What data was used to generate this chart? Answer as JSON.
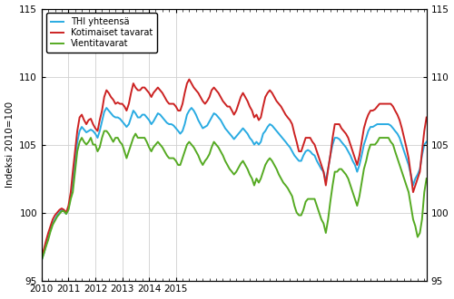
{
  "ylabel": "Indeksi 2010=100",
  "ylim": [
    95,
    115
  ],
  "yticks": [
    95,
    100,
    105,
    110,
    115
  ],
  "legend": [
    "THI yhteensä",
    "Kotimaiset tavarat",
    "Vientitavarat"
  ],
  "colors": [
    "#29abe2",
    "#cc2222",
    "#55aa22"
  ],
  "linewidth": 1.4,
  "thi_total": [
    96.5,
    97.0,
    97.6,
    98.2,
    98.7,
    99.2,
    99.5,
    99.8,
    100.0,
    100.2,
    100.1,
    99.9,
    100.3,
    101.2,
    102.3,
    103.8,
    105.2,
    106.0,
    106.3,
    106.1,
    105.9,
    106.0,
    106.1,
    106.0,
    105.8,
    105.5,
    106.0,
    106.7,
    107.4,
    107.7,
    107.5,
    107.3,
    107.1,
    107.0,
    107.0,
    106.9,
    106.7,
    106.5,
    106.3,
    106.5,
    107.0,
    107.5,
    107.3,
    107.0,
    107.0,
    107.2,
    107.2,
    107.0,
    106.8,
    106.5,
    106.7,
    107.0,
    107.3,
    107.2,
    107.0,
    106.8,
    106.6,
    106.5,
    106.5,
    106.4,
    106.2,
    106.0,
    105.8,
    106.0,
    106.5,
    107.2,
    107.5,
    107.7,
    107.5,
    107.2,
    106.8,
    106.5,
    106.2,
    106.3,
    106.4,
    106.7,
    107.0,
    107.3,
    107.2,
    107.0,
    106.8,
    106.5,
    106.2,
    106.0,
    105.8,
    105.6,
    105.4,
    105.6,
    105.8,
    106.0,
    106.2,
    106.0,
    105.8,
    105.5,
    105.3,
    105.0,
    105.2,
    105.0,
    105.2,
    105.8,
    106.0,
    106.3,
    106.5,
    106.4,
    106.2,
    106.0,
    105.8,
    105.6,
    105.4,
    105.2,
    105.0,
    104.8,
    104.5,
    104.2,
    104.0,
    103.8,
    103.8,
    104.2,
    104.5,
    104.6,
    104.5,
    104.3,
    104.2,
    103.8,
    103.5,
    103.2,
    103.0,
    102.3,
    103.2,
    104.2,
    105.0,
    105.5,
    105.5,
    105.4,
    105.2,
    105.0,
    104.8,
    104.5,
    104.2,
    103.8,
    103.5,
    103.0,
    103.5,
    104.2,
    105.0,
    105.5,
    106.0,
    106.3,
    106.3,
    106.4,
    106.5,
    106.5,
    106.5,
    106.5,
    106.5,
    106.5,
    106.4,
    106.2,
    106.0,
    105.8,
    105.5,
    105.0,
    104.5,
    104.0,
    103.5,
    102.8,
    102.0,
    102.5,
    102.8,
    103.2,
    104.2,
    105.0,
    105.2
  ],
  "kotimaiset": [
    96.8,
    97.3,
    97.9,
    98.5,
    99.0,
    99.5,
    99.8,
    100.0,
    100.2,
    100.3,
    100.2,
    100.0,
    100.5,
    101.5,
    103.0,
    104.5,
    106.0,
    107.0,
    107.2,
    106.8,
    106.5,
    106.8,
    106.9,
    106.5,
    106.2,
    106.0,
    106.8,
    107.5,
    108.5,
    109.0,
    108.8,
    108.5,
    108.3,
    108.0,
    108.1,
    108.0,
    108.0,
    107.8,
    107.5,
    108.0,
    108.8,
    109.5,
    109.2,
    109.0,
    109.0,
    109.2,
    109.2,
    109.0,
    108.8,
    108.5,
    108.8,
    109.0,
    109.2,
    109.0,
    108.8,
    108.5,
    108.2,
    108.0,
    108.0,
    108.0,
    107.8,
    107.5,
    107.5,
    108.0,
    108.8,
    109.5,
    109.8,
    109.5,
    109.2,
    109.0,
    108.8,
    108.5,
    108.2,
    108.0,
    108.2,
    108.5,
    109.0,
    109.2,
    109.0,
    108.8,
    108.5,
    108.2,
    108.0,
    107.8,
    107.8,
    107.5,
    107.2,
    107.5,
    108.0,
    108.5,
    108.8,
    108.5,
    108.2,
    107.8,
    107.5,
    107.0,
    107.2,
    106.8,
    107.0,
    107.8,
    108.5,
    108.8,
    109.0,
    108.8,
    108.5,
    108.2,
    108.0,
    107.8,
    107.5,
    107.2,
    107.0,
    106.8,
    106.5,
    105.8,
    105.2,
    104.5,
    104.5,
    105.0,
    105.5,
    105.5,
    105.5,
    105.2,
    105.0,
    104.5,
    104.0,
    103.5,
    103.0,
    102.0,
    103.2,
    104.2,
    105.5,
    106.5,
    106.5,
    106.5,
    106.2,
    106.0,
    105.8,
    105.5,
    105.0,
    104.5,
    104.0,
    103.5,
    104.2,
    105.2,
    106.2,
    106.8,
    107.2,
    107.5,
    107.5,
    107.6,
    107.8,
    108.0,
    108.0,
    108.0,
    108.0,
    108.0,
    108.0,
    107.8,
    107.5,
    107.2,
    106.8,
    106.2,
    105.5,
    104.8,
    104.0,
    102.8,
    101.5,
    102.0,
    102.5,
    103.0,
    104.5,
    106.0,
    107.0
  ],
  "vienti": [
    96.5,
    97.0,
    97.5,
    98.0,
    98.6,
    99.1,
    99.4,
    99.7,
    99.9,
    100.1,
    100.1,
    99.9,
    100.2,
    101.0,
    101.5,
    103.0,
    104.5,
    105.2,
    105.5,
    105.2,
    105.0,
    105.2,
    105.5,
    105.0,
    105.0,
    104.5,
    104.8,
    105.5,
    106.0,
    106.0,
    105.8,
    105.5,
    105.2,
    105.5,
    105.5,
    105.2,
    105.0,
    104.5,
    104.0,
    104.5,
    105.0,
    105.5,
    105.8,
    105.5,
    105.5,
    105.5,
    105.5,
    105.2,
    104.8,
    104.5,
    104.8,
    105.0,
    105.2,
    105.0,
    104.8,
    104.5,
    104.2,
    104.0,
    104.0,
    104.0,
    103.8,
    103.5,
    103.5,
    104.0,
    104.5,
    105.0,
    105.2,
    105.0,
    104.8,
    104.5,
    104.2,
    103.8,
    103.5,
    103.8,
    104.0,
    104.3,
    104.8,
    105.2,
    105.0,
    104.8,
    104.5,
    104.2,
    103.8,
    103.5,
    103.2,
    103.0,
    102.8,
    103.0,
    103.3,
    103.6,
    103.8,
    103.5,
    103.2,
    102.8,
    102.5,
    102.0,
    102.5,
    102.2,
    102.5,
    103.0,
    103.5,
    103.8,
    104.0,
    103.8,
    103.5,
    103.2,
    102.8,
    102.5,
    102.2,
    102.0,
    101.8,
    101.5,
    101.2,
    100.5,
    100.0,
    99.8,
    99.8,
    100.2,
    100.8,
    101.0,
    101.0,
    101.0,
    101.0,
    100.5,
    100.0,
    99.5,
    99.2,
    98.5,
    99.5,
    100.8,
    102.0,
    103.0,
    103.0,
    103.2,
    103.2,
    103.0,
    102.8,
    102.5,
    102.0,
    101.5,
    101.0,
    100.5,
    101.2,
    102.2,
    103.2,
    103.8,
    104.5,
    105.0,
    105.0,
    105.0,
    105.2,
    105.5,
    105.5,
    105.5,
    105.5,
    105.5,
    105.2,
    105.0,
    104.5,
    104.0,
    103.5,
    103.0,
    102.5,
    102.0,
    101.5,
    100.5,
    99.5,
    99.0,
    98.2,
    98.5,
    99.5,
    101.5,
    102.5
  ]
}
